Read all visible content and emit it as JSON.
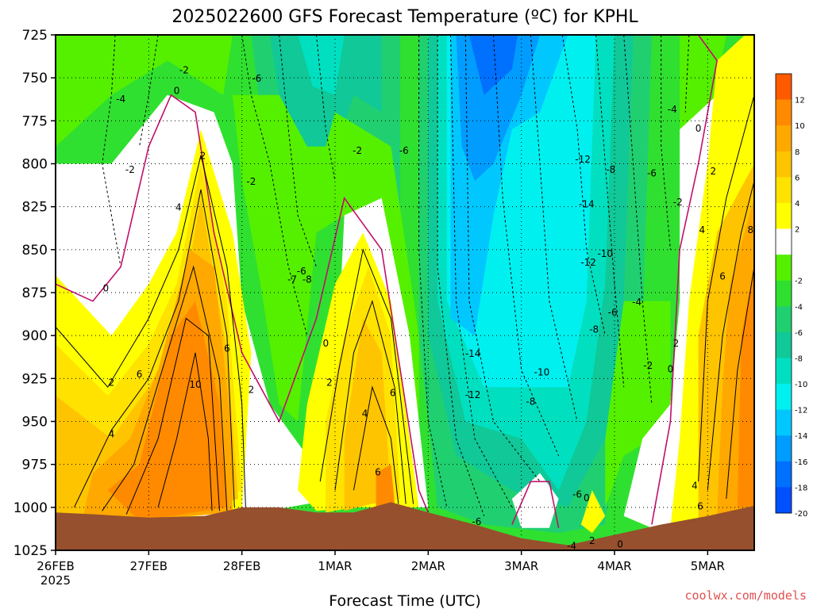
{
  "chart_data": {
    "type": "heatmap",
    "title": "2025022600 GFS Forecast Temperature (ºC) for KPHL",
    "xlabel": "Forecast Time (UTC)",
    "x_ticks": [
      "26FEB",
      "27FEB",
      "28FEB",
      "1MAR",
      "2MAR",
      "3MAR",
      "4MAR",
      "5MAR"
    ],
    "x_tick_year": "2025",
    "y_ticks": [
      725,
      750,
      775,
      800,
      825,
      850,
      875,
      900,
      925,
      950,
      975,
      1000,
      1025
    ],
    "ylim": [
      1025,
      725
    ],
    "x_range_days": [
      0,
      3.75,
      0,
      7.5
    ],
    "grid": true,
    "colorbar": {
      "ticks": [
        "12",
        "10",
        "8",
        "6",
        "4",
        "2",
        "-2",
        "-4",
        "-6",
        "-8",
        "-10",
        "-12",
        "-14",
        "-16",
        "-18",
        "-20"
      ],
      "colors": [
        "#ff5a00",
        "#ff8a00",
        "#ffa800",
        "#ffc400",
        "#ffe200",
        "#ffff00",
        "#ffffff",
        "#55f000",
        "#30e030",
        "#20d070",
        "#10c898",
        "#00e0c0",
        "#00f0f0",
        "#00c8ff",
        "#009cff",
        "#0070ff",
        "#0050ff"
      ]
    },
    "contour_labels": [
      {
        "t": "-2",
        "x": 0.69,
        "p": 745
      },
      {
        "t": "-4",
        "x": 0.35,
        "p": 762
      },
      {
        "t": "0",
        "x": 0.65,
        "p": 757
      },
      {
        "t": "2",
        "x": 0.79,
        "p": 795
      },
      {
        "t": "-2",
        "x": 0.4,
        "p": 803
      },
      {
        "t": "-2",
        "x": 1.05,
        "p": 810
      },
      {
        "t": "-6",
        "x": 1.08,
        "p": 750
      },
      {
        "t": "-2",
        "x": 1.62,
        "p": 792
      },
      {
        "t": "-6",
        "x": 1.87,
        "p": 792
      },
      {
        "t": "4",
        "x": 0.66,
        "p": 825
      },
      {
        "t": "0",
        "x": 0.27,
        "p": 872
      },
      {
        "t": "-6",
        "x": 1.32,
        "p": 862
      },
      {
        "t": "-8",
        "x": 1.35,
        "p": 867
      },
      {
        "t": "-7",
        "x": 1.27,
        "p": 867
      },
      {
        "t": "6",
        "x": 0.45,
        "p": 922
      },
      {
        "t": "6",
        "x": 0.92,
        "p": 907
      },
      {
        "t": "10",
        "x": 0.75,
        "p": 928
      },
      {
        "t": "2",
        "x": 0.3,
        "p": 927
      },
      {
        "t": "4",
        "x": 0.3,
        "p": 957
      },
      {
        "t": "2",
        "x": 1.05,
        "p": 931
      },
      {
        "t": "0",
        "x": 1.45,
        "p": 904
      },
      {
        "t": "2",
        "x": 1.47,
        "p": 927
      },
      {
        "t": "4",
        "x": 1.66,
        "p": 945
      },
      {
        "t": "6",
        "x": 1.81,
        "p": 933
      },
      {
        "t": "6",
        "x": 1.73,
        "p": 979
      },
      {
        "t": "-14",
        "x": 2.24,
        "p": 910
      },
      {
        "t": "-12",
        "x": 2.24,
        "p": 934
      },
      {
        "t": "-10",
        "x": 2.61,
        "p": 921
      },
      {
        "t": "-8",
        "x": 2.55,
        "p": 938
      },
      {
        "t": "-6",
        "x": 2.26,
        "p": 1008
      },
      {
        "t": "-6",
        "x": 2.8,
        "p": 992
      },
      {
        "t": "-4",
        "x": 2.77,
        "p": 1022
      },
      {
        "t": "-12",
        "x": 2.83,
        "p": 797
      },
      {
        "t": "-8",
        "x": 2.98,
        "p": 803
      },
      {
        "t": "-6",
        "x": 3.2,
        "p": 805
      },
      {
        "t": "-14",
        "x": 2.85,
        "p": 823
      },
      {
        "t": "-10",
        "x": 2.95,
        "p": 852
      },
      {
        "t": "-12",
        "x": 2.86,
        "p": 857
      },
      {
        "t": "-4",
        "x": 3.12,
        "p": 880
      },
      {
        "t": "-6",
        "x": 2.99,
        "p": 886
      },
      {
        "t": "-8",
        "x": 2.89,
        "p": 896
      },
      {
        "t": "-4",
        "x": 3.31,
        "p": 768
      },
      {
        "t": "0",
        "x": 3.45,
        "p": 779
      },
      {
        "t": "2",
        "x": 3.53,
        "p": 804
      },
      {
        "t": "-2",
        "x": 3.34,
        "p": 822
      },
      {
        "t": "4",
        "x": 3.47,
        "p": 838
      },
      {
        "t": "6",
        "x": 3.58,
        "p": 865
      },
      {
        "t": "8",
        "x": 3.73,
        "p": 838
      },
      {
        "t": "-2",
        "x": 3.18,
        "p": 917
      },
      {
        "t": "0",
        "x": 3.3,
        "p": 919
      },
      {
        "t": "2",
        "x": 3.33,
        "p": 904
      },
      {
        "t": "0",
        "x": 2.85,
        "p": 994
      },
      {
        "t": "2",
        "x": 2.88,
        "p": 1019
      },
      {
        "t": "0",
        "x": 3.03,
        "p": 1021
      },
      {
        "t": "4",
        "x": 3.43,
        "p": 987
      },
      {
        "t": "6",
        "x": 3.46,
        "p": 999
      }
    ],
    "surface_pressure": [
      [
        0,
        1003
      ],
      [
        0.2,
        1004
      ],
      [
        0.5,
        1006
      ],
      [
        0.8,
        1005
      ],
      [
        1.0,
        1000
      ],
      [
        1.2,
        1000
      ],
      [
        1.4,
        1003
      ],
      [
        1.6,
        1003
      ],
      [
        1.8,
        997
      ],
      [
        2.0,
        1003
      ],
      [
        2.25,
        1010
      ],
      [
        2.5,
        1018
      ],
      [
        2.75,
        1022
      ],
      [
        3.0,
        1016
      ],
      [
        3.25,
        1010
      ],
      [
        3.5,
        1005
      ],
      [
        3.75,
        999
      ]
    ]
  },
  "credit": "coolwx.com/models",
  "colors": {
    "terrain": "#96502d",
    "credit": "#e05050",
    "contour_magenta": "#c0106c",
    "frame": "#000000"
  }
}
